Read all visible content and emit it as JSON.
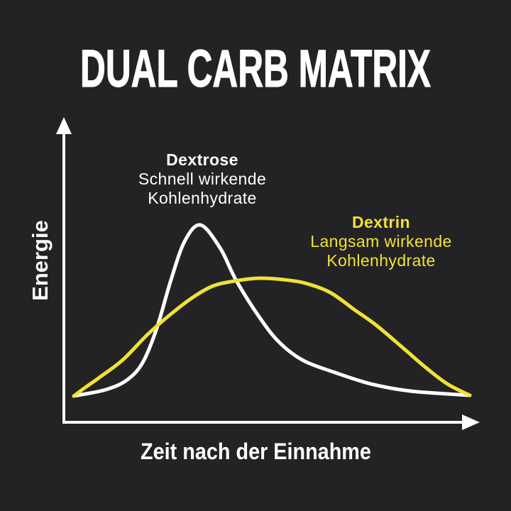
{
  "title": "DUAL CARB MATRIX",
  "y_axis_label": "Energie",
  "x_axis_label": "Zeit nach der Einnahme",
  "series": [
    {
      "name": "Dextrose",
      "desc_line1": "Schnell wirkende",
      "desc_line2": "Kohlenhydrate",
      "color": "#ffffff"
    },
    {
      "name": "Dextrin",
      "desc_line1": "Langsam wirkende",
      "desc_line2": "Kohlenhydrate",
      "color": "#f1e136"
    }
  ],
  "chart_data": {
    "type": "line",
    "title": "DUAL CARB MATRIX",
    "xlabel": "Zeit nach der Einnahme",
    "ylabel": "Energie",
    "xlim": [
      0,
      10
    ],
    "ylim": [
      0,
      110
    ],
    "grid": false,
    "legend_position": "inline-annotations",
    "series": [
      {
        "name": "Dextrose",
        "annotation": "Schnell wirkende Kohlenhydrate",
        "color": "#ffffff",
        "points": [
          {
            "x": 0.0,
            "y": 0.0
          },
          {
            "x": 0.8,
            "y": 3.7
          },
          {
            "x": 1.35,
            "y": 9.5
          },
          {
            "x": 1.75,
            "y": 20.0
          },
          {
            "x": 2.1,
            "y": 40.0
          },
          {
            "x": 2.45,
            "y": 67.6
          },
          {
            "x": 2.8,
            "y": 90.5
          },
          {
            "x": 3.2,
            "y": 100.0
          },
          {
            "x": 3.7,
            "y": 86.3
          },
          {
            "x": 4.1,
            "y": 67.6
          },
          {
            "x": 4.7,
            "y": 45.6
          },
          {
            "x": 5.2,
            "y": 31.1
          },
          {
            "x": 5.8,
            "y": 20.7
          },
          {
            "x": 6.6,
            "y": 13.7
          },
          {
            "x": 7.5,
            "y": 7.1
          },
          {
            "x": 8.5,
            "y": 2.9
          },
          {
            "x": 10.0,
            "y": 0.4
          }
        ]
      },
      {
        "name": "Dextrin",
        "annotation": "Langsam wirkende Kohlenhydrate",
        "color": "#f1e136",
        "points": [
          {
            "x": 0.0,
            "y": 0.0
          },
          {
            "x": 0.3,
            "y": 5.2
          },
          {
            "x": 0.65,
            "y": 10.9
          },
          {
            "x": 1.24,
            "y": 21.2
          },
          {
            "x": 1.85,
            "y": 35.7
          },
          {
            "x": 2.44,
            "y": 47.7
          },
          {
            "x": 2.98,
            "y": 57.3
          },
          {
            "x": 3.51,
            "y": 64.3
          },
          {
            "x": 4.05,
            "y": 67.2
          },
          {
            "x": 4.68,
            "y": 68.9
          },
          {
            "x": 5.31,
            "y": 68.0
          },
          {
            "x": 5.84,
            "y": 66.0
          },
          {
            "x": 6.47,
            "y": 60.6
          },
          {
            "x": 7.1,
            "y": 50.2
          },
          {
            "x": 7.63,
            "y": 41.5
          },
          {
            "x": 8.35,
            "y": 27.4
          },
          {
            "x": 8.89,
            "y": 16.6
          },
          {
            "x": 9.43,
            "y": 7.1
          },
          {
            "x": 10.0,
            "y": 0.4
          }
        ]
      }
    ]
  }
}
